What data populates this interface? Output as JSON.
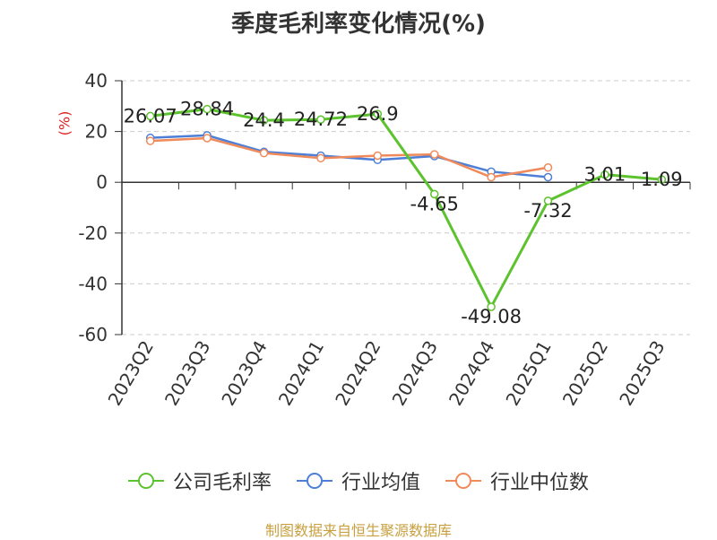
{
  "title": "季度毛利率变化情况(%)",
  "unit_label": "(%)",
  "source": "制图数据来自恒生聚源数据库",
  "chart_data": {
    "type": "line",
    "categories": [
      "2023Q2",
      "2023Q3",
      "2023Q4",
      "2024Q1",
      "2024Q2",
      "2024Q3",
      "2024Q4",
      "2025Q1",
      "2025Q2",
      "2025Q3"
    ],
    "ylim": [
      -60,
      40
    ],
    "yticks": [
      40,
      20,
      0,
      -20,
      -40,
      -60
    ],
    "grid": true,
    "legend_position": "bottom",
    "series": [
      {
        "name": "公司毛利率",
        "color": "#5cc22e",
        "values": [
          26.07,
          28.84,
          24.4,
          24.72,
          26.9,
          -4.65,
          -49.08,
          -7.32,
          3.01,
          1.09
        ],
        "labels": [
          "26.07",
          "28.84",
          "24.4",
          "24.72",
          "26.9",
          "-4.65",
          "-49.08",
          "-7.32",
          "3.01",
          "1.09"
        ]
      },
      {
        "name": "行业均值",
        "color": "#4e7fd6",
        "values": [
          17.5,
          18.5,
          12.0,
          10.5,
          8.8,
          10.3,
          4.2,
          2.0,
          null,
          null
        ]
      },
      {
        "name": "行业中位数",
        "color": "#f08a5a",
        "values": [
          16.3,
          17.4,
          11.5,
          9.5,
          10.5,
          11.0,
          2.0,
          5.8,
          null,
          null
        ]
      }
    ]
  }
}
